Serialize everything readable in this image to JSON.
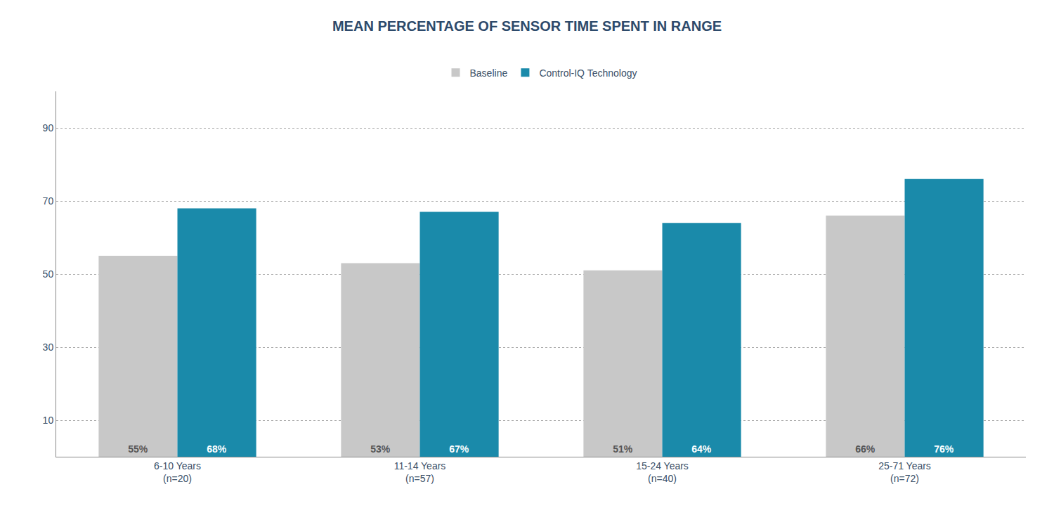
{
  "chart_data": {
    "type": "bar",
    "title": "MEAN PERCENTAGE OF SENSOR TIME SPENT IN RANGE",
    "categories": [
      "6-10 Years\n(n=20)",
      "11-14 Years\n(n=57)",
      "15-24 Years\n(n=40)",
      "25-71 Years\n(n=72)"
    ],
    "series": [
      {
        "name": "Baseline",
        "color": "#c8c8c8",
        "values": [
          55,
          53,
          51,
          66
        ],
        "value_labels": [
          "55%",
          "53%",
          "51%",
          "66%"
        ]
      },
      {
        "name": "Control-IQ Technology",
        "color": "#1a8aaa",
        "values": [
          68,
          67,
          64,
          76
        ],
        "value_labels": [
          "68%",
          "67%",
          "64%",
          "76%"
        ]
      }
    ],
    "ylim": [
      0,
      100
    ],
    "yticks": [
      10,
      30,
      50,
      70,
      90
    ],
    "grid": true,
    "legend": "top",
    "data_labels": true
  }
}
